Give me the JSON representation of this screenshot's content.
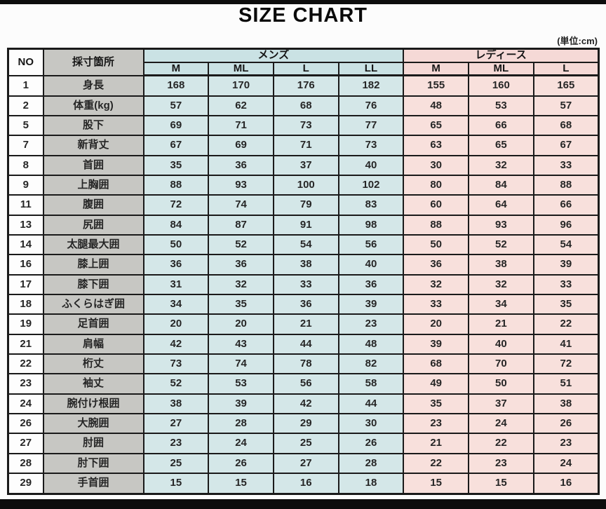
{
  "title": "SIZE CHART",
  "unit_label": "(単位:cm)",
  "colors": {
    "border": "#1a1a1a",
    "no_bg": "#fdfdfd",
    "label_bg": "#c7c7c3",
    "mens_bg": "#d4e7e8",
    "ladies_bg": "#f8e0dc",
    "mens_head_bg": "#cae2e4",
    "ladies_head_bg": "#f5d9d6",
    "bar": "#0d0d0d"
  },
  "chart_data": {
    "type": "table",
    "title": "SIZE CHART",
    "unit": "cm",
    "headers": {
      "no": "NO",
      "part": "採寸箇所",
      "mens": "メンズ",
      "ladies": "レディース",
      "mens_sizes": [
        "M",
        "ML",
        "L",
        "LL"
      ],
      "ladies_sizes": [
        "M",
        "ML",
        "L"
      ]
    },
    "rows": [
      {
        "no": "1",
        "part": "身長",
        "mens": [
          168,
          170,
          176,
          182
        ],
        "ladies": [
          155,
          160,
          165
        ]
      },
      {
        "no": "2",
        "part": "体重(kg)",
        "mens": [
          57,
          62,
          68,
          76
        ],
        "ladies": [
          48,
          53,
          57
        ]
      },
      {
        "no": "5",
        "part": "股下",
        "mens": [
          69,
          71,
          73,
          77
        ],
        "ladies": [
          65,
          66,
          68
        ]
      },
      {
        "no": "7",
        "part": "新背丈",
        "mens": [
          67,
          69,
          71,
          73
        ],
        "ladies": [
          63,
          65,
          67
        ]
      },
      {
        "no": "8",
        "part": "首囲",
        "mens": [
          35,
          36,
          37,
          40
        ],
        "ladies": [
          30,
          32,
          33
        ]
      },
      {
        "no": "9",
        "part": "上胸囲",
        "mens": [
          88,
          93,
          100,
          102
        ],
        "ladies": [
          80,
          84,
          88
        ]
      },
      {
        "no": "11",
        "part": "腹囲",
        "mens": [
          72,
          74,
          79,
          83
        ],
        "ladies": [
          60,
          64,
          66
        ]
      },
      {
        "no": "13",
        "part": "尻囲",
        "mens": [
          84,
          87,
          91,
          98
        ],
        "ladies": [
          88,
          93,
          96
        ]
      },
      {
        "no": "14",
        "part": "太腿最大囲",
        "mens": [
          50,
          52,
          54,
          56
        ],
        "ladies": [
          50,
          52,
          54
        ]
      },
      {
        "no": "16",
        "part": "膝上囲",
        "mens": [
          36,
          36,
          38,
          40
        ],
        "ladies": [
          36,
          38,
          39
        ]
      },
      {
        "no": "17",
        "part": "膝下囲",
        "mens": [
          31,
          32,
          33,
          36
        ],
        "ladies": [
          32,
          32,
          33
        ]
      },
      {
        "no": "18",
        "part": "ふくらはぎ囲",
        "mens": [
          34,
          35,
          36,
          39
        ],
        "ladies": [
          33,
          34,
          35
        ]
      },
      {
        "no": "19",
        "part": "足首囲",
        "mens": [
          20,
          20,
          21,
          23
        ],
        "ladies": [
          20,
          21,
          22
        ]
      },
      {
        "no": "21",
        "part": "肩幅",
        "mens": [
          42,
          43,
          44,
          48
        ],
        "ladies": [
          39,
          40,
          41
        ]
      },
      {
        "no": "22",
        "part": "桁丈",
        "mens": [
          73,
          74,
          78,
          82
        ],
        "ladies": [
          68,
          70,
          72
        ]
      },
      {
        "no": "23",
        "part": "袖丈",
        "mens": [
          52,
          53,
          56,
          58
        ],
        "ladies": [
          49,
          50,
          51
        ]
      },
      {
        "no": "24",
        "part": "腕付け根囲",
        "mens": [
          38,
          39,
          42,
          44
        ],
        "ladies": [
          35,
          37,
          38
        ]
      },
      {
        "no": "26",
        "part": "大腕囲",
        "mens": [
          27,
          28,
          29,
          30
        ],
        "ladies": [
          23,
          24,
          26
        ]
      },
      {
        "no": "27",
        "part": "肘囲",
        "mens": [
          23,
          24,
          25,
          26
        ],
        "ladies": [
          21,
          22,
          23
        ]
      },
      {
        "no": "28",
        "part": "肘下囲",
        "mens": [
          25,
          26,
          27,
          28
        ],
        "ladies": [
          22,
          23,
          24
        ]
      },
      {
        "no": "29",
        "part": "手首囲",
        "mens": [
          15,
          15,
          16,
          18
        ],
        "ladies": [
          15,
          15,
          16
        ]
      }
    ]
  }
}
